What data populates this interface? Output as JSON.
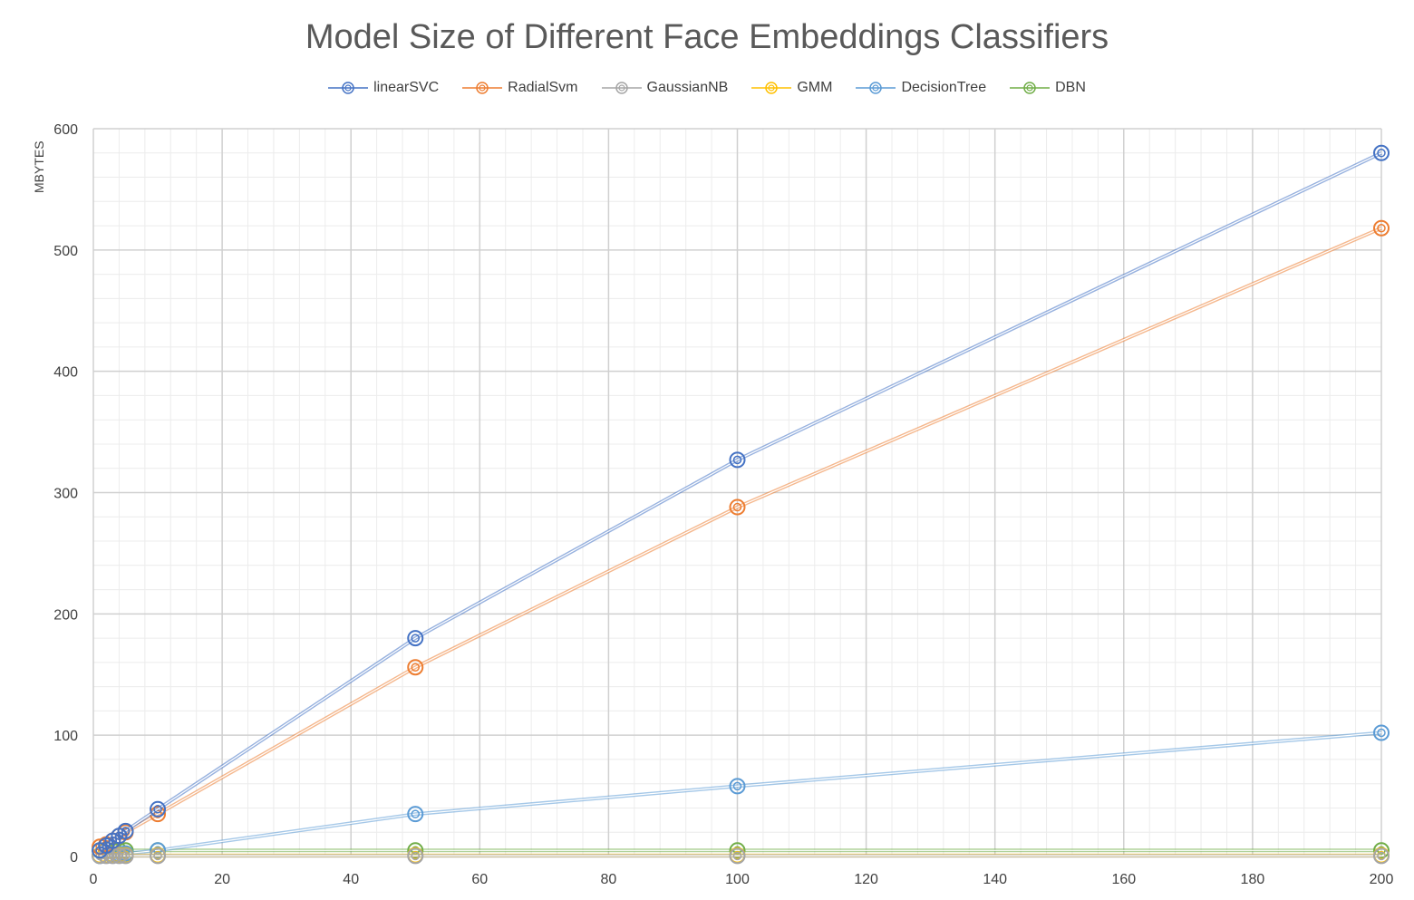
{
  "chart_data": {
    "type": "line",
    "title": "Model Size of Different Face Embeddings Classifiers",
    "xlabel": "",
    "ylabel": "MBYTES",
    "xlim": [
      0,
      200
    ],
    "ylim": [
      0,
      600
    ],
    "x_ticks": [
      0,
      20,
      40,
      60,
      80,
      100,
      120,
      140,
      160,
      180,
      200
    ],
    "y_ticks": [
      0,
      100,
      200,
      300,
      400,
      500,
      600
    ],
    "grid": true,
    "legend_position": "top",
    "x": [
      1,
      2,
      3,
      4,
      5,
      10,
      50,
      100,
      200
    ],
    "series": [
      {
        "name": "linearSVC",
        "color": "#4472C4",
        "values": [
          5,
          9,
          13,
          17,
          21,
          39,
          180,
          327,
          580
        ]
      },
      {
        "name": "RadialSvm",
        "color": "#ED7D31",
        "values": [
          8,
          10,
          13,
          17,
          20,
          35,
          156,
          288,
          518
        ]
      },
      {
        "name": "GaussianNB",
        "color": "#A5A5A5",
        "values": [
          0.5,
          0.5,
          0.5,
          0.5,
          0.5,
          0.5,
          0.5,
          0.5,
          0.5
        ]
      },
      {
        "name": "GMM",
        "color": "#FFC000",
        "values": [
          1,
          1,
          1,
          1,
          1,
          1,
          1,
          1,
          1
        ]
      },
      {
        "name": "DecisionTree",
        "color": "#5B9BD5",
        "values": [
          0.5,
          1,
          1.5,
          2,
          2.5,
          5,
          35,
          58,
          102
        ]
      },
      {
        "name": "DBN",
        "color": "#70AD47",
        "values": [
          5,
          5,
          5,
          5,
          5,
          5,
          5,
          5,
          5
        ]
      }
    ]
  }
}
